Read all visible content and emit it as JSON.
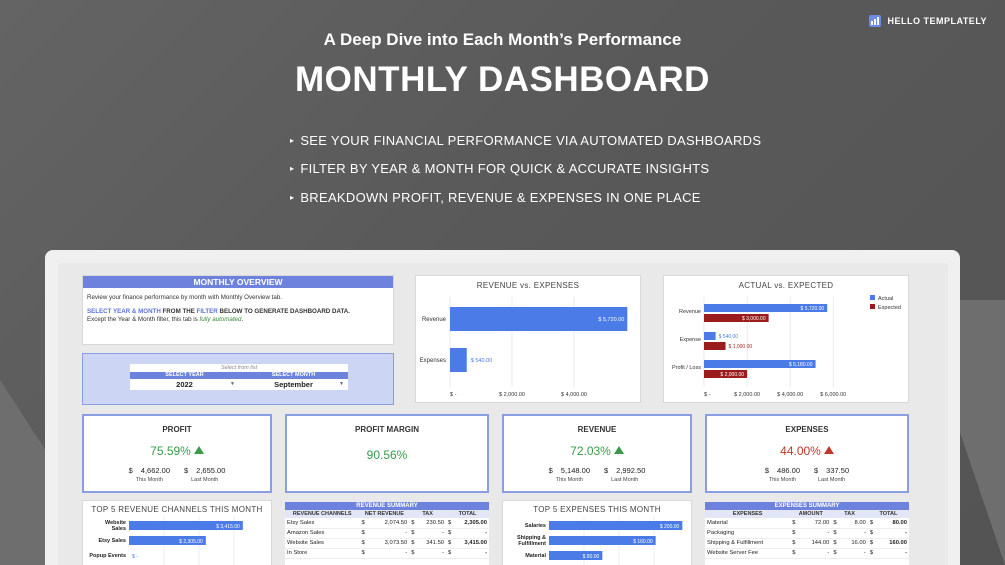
{
  "brand": {
    "name": "HELLO TEMPLATELY"
  },
  "hero": {
    "subtitle": "A Deep Dive into Each Month’s Performance",
    "title": "MONTHLY DASHBOARD",
    "bullets": [
      "SEE YOUR FINANCIAL PERFORMANCE VIA AUTOMATED DASHBOARDS",
      "FILTER BY YEAR & MONTH FOR QUICK & ACCURATE INSIGHTS",
      "BREAKDOWN PROFIT, REVENUE & EXPENSES IN ONE PLACE"
    ]
  },
  "overview": {
    "header": "MONTHLY OVERVIEW",
    "line1": "Review your finance performance by month with Monthly Overview tab.",
    "line2_a": "SELECT YEAR & MONTH",
    "line2_b": " FROM THE ",
    "line2_c": "FILTER",
    "line2_d": " BELOW TO GENERATE DASHBOARD DATA.",
    "line3_a": "Except the Year & Month filter, this tab is ",
    "line3_b": "fully automated",
    "line3_c": "."
  },
  "filter": {
    "hint": "Select from list",
    "year_label": "SELECT YEAR",
    "month_label": "SELECT MONTH",
    "year_value": "2022",
    "month_value": "September"
  },
  "rev_vs_exp": {
    "title": "REVENUE vs. EXPENSES",
    "categories": [
      "Revenue",
      "Expenses"
    ],
    "values": [
      5720,
      540
    ],
    "labels": [
      "$ 5,720.00",
      "$ 540.00"
    ],
    "ticks": [
      "$ -",
      "$ 2,000.00",
      "$ 4,000.00"
    ],
    "color": "#4a7be6"
  },
  "actual_vs_expected": {
    "title": "ACTUAL vs. EXPECTED",
    "legend": [
      "Actual",
      "Expected"
    ],
    "colors": [
      "#4a7be6",
      "#9b1c1c"
    ],
    "categories": [
      "Revenue",
      "Expense",
      "Profit / Loss"
    ],
    "actual": [
      5720,
      540,
      5180
    ],
    "expected": [
      3000,
      1000,
      2000
    ],
    "actual_labels": [
      "$ 5,720.00",
      "$ 540.00",
      "$ 5,180.00"
    ],
    "expected_labels": [
      "$ 3,000.00",
      "$ 1,000.00",
      "$ 2,000.00"
    ],
    "ticks": [
      "$ -",
      "$ 2,000.00",
      "$ 4,000.00",
      "$ 6,000.00"
    ]
  },
  "kpis": {
    "profit": {
      "title": "PROFIT",
      "value": "75.59%",
      "this": "4,662.00",
      "last": "2,655.00",
      "this_label": "This Month",
      "last_label": "Last Month",
      "currency": "$"
    },
    "margin": {
      "title": "PROFIT MARGIN",
      "value": "90.56%"
    },
    "revenue": {
      "title": "REVENUE",
      "value": "72.03%",
      "this": "5,148.00",
      "last": "2,992.50",
      "this_label": "This Month",
      "last_label": "Last Month",
      "currency": "$"
    },
    "expenses": {
      "title": "EXPENSES",
      "value": "44.00%",
      "this": "486.00",
      "last": "337.50",
      "this_label": "This Month",
      "last_label": "Last Month",
      "currency": "$"
    }
  },
  "top_revenue": {
    "title": "TOP 5 REVENUE CHANNELS THIS MONTH",
    "categories": [
      "Website Sales",
      "Etsy Sales",
      "Popup Events"
    ],
    "values": [
      3415,
      2305,
      0
    ],
    "labels": [
      "$ 3,415.00",
      "$ 2,305.00",
      "$ -"
    ]
  },
  "revenue_summary": {
    "title": "REVENUE SUMMARY",
    "columns": [
      "REVENUE CHANNELS",
      "NET REVENUE",
      "TAX",
      "TOTAL"
    ],
    "rows": [
      [
        "Etsy Sales",
        "2,074.50",
        "230.50",
        "2,305.00"
      ],
      [
        "Amazon Sales",
        "-",
        "-",
        "-"
      ],
      [
        "Website Sales",
        "3,073.50",
        "341.50",
        "3,415.00"
      ],
      [
        "In Store",
        "-",
        "-",
        "-"
      ]
    ]
  },
  "top_expenses": {
    "title": "TOP 5 EXPENSES THIS MONTH",
    "categories": [
      "Salaries",
      "Shipping & Fulfillment",
      "Material"
    ],
    "values": [
      200,
      160,
      80
    ],
    "labels": [
      "$ 200.00",
      "$ 160.00",
      "$ 80.00"
    ]
  },
  "expenses_summary": {
    "title": "EXPENSES SUMMARY",
    "columns": [
      "EXPENSES",
      "AMOUNT",
      "TAX",
      "TOTAL"
    ],
    "rows": [
      [
        "Material",
        "72.00",
        "8.00",
        "80.00"
      ],
      [
        "Packaging",
        "-",
        "-",
        "-"
      ],
      [
        "Shipping & Fulfillment",
        "144.00",
        "16.00",
        "160.00"
      ],
      [
        "Website Server Fee",
        "-",
        "-",
        "-"
      ]
    ]
  }
}
